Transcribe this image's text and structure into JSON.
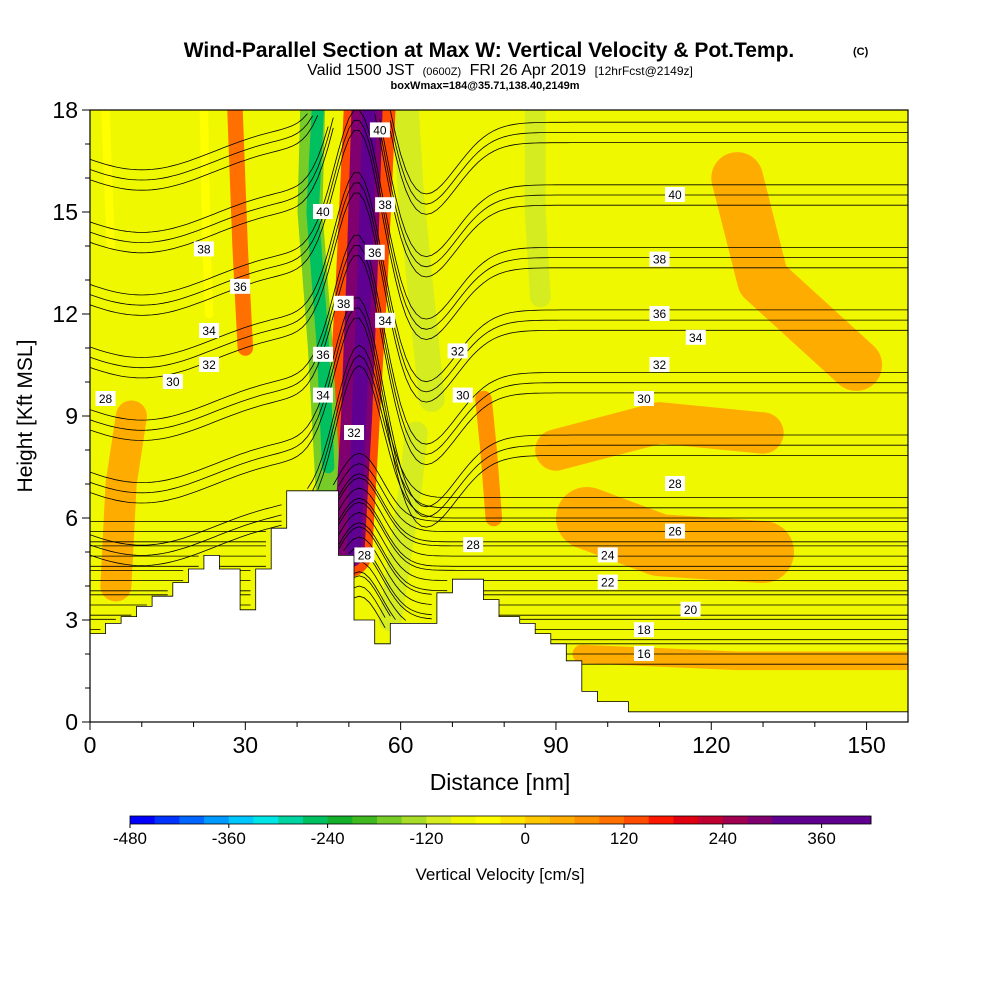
{
  "chart_data": {
    "type": "heatmap",
    "title": {
      "main": "Wind-Parallel Section at Max W: Vertical Velocity & Pot.Temp.",
      "corner": "(C)",
      "valid_prefix": "Valid 1500 JST",
      "valid_z": "(0600Z)",
      "valid_date": "FRI 26 Apr 2019",
      "fcst": "[12hrFcst@2149z]",
      "box": "boxWmax=184@35.71,138.40,2149m"
    },
    "xlabel": "Distance [nm]",
    "ylabel": "Height [Kft MSL]",
    "xlim": [
      0,
      158
    ],
    "ylim": [
      0,
      18
    ],
    "x_ticks": [
      0,
      30,
      60,
      90,
      120,
      150
    ],
    "y_ticks": [
      0,
      3,
      6,
      9,
      12,
      15,
      18
    ],
    "colorbar": {
      "label": "Vertical Velocity [cm/s]",
      "range": [
        -480,
        420
      ],
      "step": 30,
      "tick_values": [
        -480,
        -360,
        -240,
        -120,
        0,
        120,
        240,
        360
      ],
      "tick_labels": [
        "-480",
        "-360",
        "-240",
        "-120",
        "0",
        "120",
        "240",
        "360"
      ],
      "colors": [
        "#0000ff",
        "#0033ff",
        "#0066ff",
        "#0099ff",
        "#00c8ff",
        "#00e6e6",
        "#00d4a0",
        "#00c060",
        "#14b02c",
        "#40b820",
        "#78cc28",
        "#a8dc28",
        "#d4ec20",
        "#f0f800",
        "#ffff00",
        "#ffe400",
        "#ffc800",
        "#ffac00",
        "#ff9000",
        "#ff7000",
        "#ff4c00",
        "#ff1800",
        "#e00010",
        "#c00030",
        "#a00050",
        "#800070",
        "#600090"
      ]
    },
    "contour_variable": "potential temperature (C)",
    "contour_levels": [
      16,
      18,
      20,
      22,
      24,
      26,
      28,
      30,
      32,
      34,
      36,
      38,
      40
    ],
    "contour_labels": [
      {
        "text": "40",
        "x": 56,
        "y": 17.4
      },
      {
        "text": "38",
        "x": 57,
        "y": 15.2
      },
      {
        "text": "36",
        "x": 55,
        "y": 13.8
      },
      {
        "text": "34",
        "x": 57,
        "y": 11.8
      },
      {
        "text": "32",
        "x": 71,
        "y": 10.9
      },
      {
        "text": "30",
        "x": 72,
        "y": 9.6
      },
      {
        "text": "40",
        "x": 45,
        "y": 15.0
      },
      {
        "text": "38",
        "x": 49,
        "y": 12.3
      },
      {
        "text": "36",
        "x": 45,
        "y": 10.8
      },
      {
        "text": "34",
        "x": 45,
        "y": 9.6
      },
      {
        "text": "32",
        "x": 51,
        "y": 8.5
      },
      {
        "text": "28",
        "x": 53,
        "y": 4.9
      },
      {
        "text": "38",
        "x": 22,
        "y": 13.9
      },
      {
        "text": "36",
        "x": 29,
        "y": 12.8
      },
      {
        "text": "34",
        "x": 23,
        "y": 11.5
      },
      {
        "text": "32",
        "x": 23,
        "y": 10.5
      },
      {
        "text": "30",
        "x": 16,
        "y": 10.0
      },
      {
        "text": "28",
        "x": 3,
        "y": 9.5
      },
      {
        "text": "40",
        "x": 113,
        "y": 15.5
      },
      {
        "text": "38",
        "x": 110,
        "y": 13.6
      },
      {
        "text": "36",
        "x": 110,
        "y": 12.0
      },
      {
        "text": "34",
        "x": 117,
        "y": 11.3
      },
      {
        "text": "32",
        "x": 110,
        "y": 10.5
      },
      {
        "text": "30",
        "x": 107,
        "y": 9.5
      },
      {
        "text": "28",
        "x": 113,
        "y": 7.0
      },
      {
        "text": "26",
        "x": 113,
        "y": 5.6
      },
      {
        "text": "28",
        "x": 74,
        "y": 5.2
      },
      {
        "text": "24",
        "x": 100,
        "y": 4.9
      },
      {
        "text": "22",
        "x": 100,
        "y": 4.1
      },
      {
        "text": "20",
        "x": 116,
        "y": 3.3
      },
      {
        "text": "18",
        "x": 107,
        "y": 2.7
      },
      {
        "text": "16",
        "x": 107,
        "y": 2.0
      }
    ],
    "terrain_top_kft": [
      [
        0,
        2.6
      ],
      [
        3,
        2.6
      ],
      [
        3,
        2.9
      ],
      [
        6,
        2.9
      ],
      [
        6,
        3.1
      ],
      [
        9,
        3.1
      ],
      [
        9,
        3.4
      ],
      [
        12,
        3.4
      ],
      [
        12,
        3.7
      ],
      [
        16,
        3.7
      ],
      [
        16,
        4.1
      ],
      [
        19,
        4.1
      ],
      [
        19,
        4.5
      ],
      [
        22,
        4.5
      ],
      [
        22,
        4.9
      ],
      [
        25,
        4.9
      ],
      [
        25,
        4.5
      ],
      [
        29,
        4.5
      ],
      [
        29,
        3.3
      ],
      [
        32,
        3.3
      ],
      [
        32,
        4.5
      ],
      [
        35,
        4.5
      ],
      [
        35,
        5.7
      ],
      [
        38,
        5.7
      ],
      [
        38,
        6.8
      ],
      [
        48,
        6.8
      ],
      [
        48,
        4.9
      ],
      [
        51,
        4.9
      ],
      [
        51,
        3.0
      ],
      [
        55,
        3.0
      ],
      [
        55,
        2.3
      ],
      [
        58,
        2.3
      ],
      [
        58,
        2.9
      ],
      [
        67,
        2.9
      ],
      [
        67,
        3.8
      ],
      [
        70,
        3.8
      ],
      [
        70,
        4.2
      ],
      [
        76,
        4.2
      ],
      [
        76,
        3.6
      ],
      [
        79,
        3.6
      ],
      [
        79,
        3.1
      ],
      [
        83,
        3.1
      ],
      [
        83,
        2.9
      ],
      [
        86,
        2.9
      ],
      [
        86,
        2.6
      ],
      [
        89,
        2.6
      ],
      [
        89,
        2.3
      ],
      [
        92,
        2.3
      ],
      [
        92,
        1.8
      ],
      [
        95,
        1.8
      ],
      [
        95,
        0.9
      ],
      [
        98,
        0.9
      ],
      [
        98,
        0.6
      ],
      [
        104,
        0.6
      ],
      [
        104,
        0.3
      ],
      [
        158,
        0.3
      ]
    ],
    "w_features": [
      {
        "w": 390,
        "path": [
          [
            51,
            5.0
          ],
          [
            52,
            9.0
          ],
          [
            53,
            13.0
          ],
          [
            54,
            18.0
          ]
        ],
        "half_width": 1.4
      },
      {
        "w": 270,
        "path": [
          [
            50,
            5.0
          ],
          [
            51.5,
            9.0
          ],
          [
            52.5,
            13.0
          ],
          [
            53.5,
            18.0
          ]
        ],
        "half_width": 3.0
      },
      {
        "w": 120,
        "path": [
          [
            49.5,
            5.0
          ],
          [
            51,
            9.0
          ],
          [
            52.5,
            13.0
          ],
          [
            54,
            18.0
          ]
        ],
        "half_width": 5.0
      },
      {
        "w": -270,
        "path": [
          [
            46,
            7.5
          ],
          [
            45,
            11.0
          ],
          [
            43,
            15.0
          ],
          [
            44,
            18.0
          ]
        ],
        "half_width": 1.2
      },
      {
        "w": -160,
        "path": [
          [
            46,
            6.8
          ],
          [
            44.5,
            11.0
          ],
          [
            42.5,
            15.0
          ],
          [
            43,
            18.0
          ]
        ],
        "half_width": 2.4
      },
      {
        "w": -90,
        "path": [
          [
            45,
            6.8
          ],
          [
            43,
            11.0
          ],
          [
            41,
            15.0
          ],
          [
            40,
            18.0
          ]
        ],
        "half_width": 4.0
      },
      {
        "w": -100,
        "path": [
          [
            61,
            18.0
          ],
          [
            62,
            15.5
          ],
          [
            64,
            12.5
          ],
          [
            66,
            9.5
          ]
        ],
        "half_width": 2.5
      },
      {
        "w": -100,
        "path": [
          [
            86,
            18.0
          ],
          [
            86,
            15.0
          ],
          [
            87,
            12.5
          ]
        ],
        "half_width": 2.0
      },
      {
        "w": -100,
        "path": [
          [
            58,
            3.0
          ],
          [
            60,
            5.0
          ],
          [
            62,
            7.0
          ],
          [
            63,
            8.5
          ]
        ],
        "half_width": 2.2
      },
      {
        "w": -60,
        "path": [
          [
            3,
            18.0
          ],
          [
            3.5,
            16.0
          ],
          [
            4,
            14.0
          ]
        ],
        "half_width": 0.8
      },
      {
        "w": -40,
        "path": [
          [
            22,
            18.0
          ],
          [
            22.5,
            14.0
          ],
          [
            23,
            12.0
          ]
        ],
        "half_width": 0.8
      },
      {
        "w": 100,
        "path": [
          [
            28,
            18.0
          ],
          [
            29,
            14.0
          ],
          [
            30,
            11.0
          ]
        ],
        "half_width": 1.5
      },
      {
        "w": 60,
        "path": [
          [
            76,
            9.5
          ],
          [
            77,
            8.0
          ],
          [
            78,
            6.0
          ]
        ],
        "half_width": 1.6
      },
      {
        "w": 40,
        "path": [
          [
            125,
            16.0
          ],
          [
            130,
            13.0
          ],
          [
            148,
            10.5
          ]
        ],
        "half_width": 5.0
      },
      {
        "w": 35,
        "path": [
          [
            8,
            9.0
          ],
          [
            6,
            7.0
          ],
          [
            5,
            4.0
          ]
        ],
        "half_width": 3.0
      },
      {
        "w": 35,
        "path": [
          [
            96,
            6.0
          ],
          [
            110,
            5.2
          ],
          [
            130,
            5.0
          ]
        ],
        "half_width": 6.0
      },
      {
        "w": 35,
        "path": [
          [
            95,
            2.0
          ],
          [
            125,
            1.8
          ],
          [
            158,
            1.8
          ]
        ],
        "half_width": 1.8
      },
      {
        "w": 35,
        "path": [
          [
            90,
            8.0
          ],
          [
            110,
            8.8
          ],
          [
            130,
            8.5
          ]
        ],
        "half_width": 4.0
      }
    ]
  }
}
